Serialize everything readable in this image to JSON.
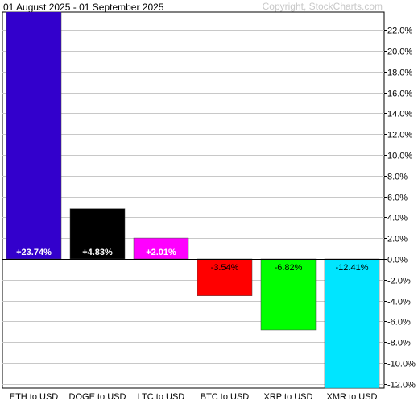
{
  "header": {
    "title": "01 August 2025 - 01 September 2025",
    "copyright": "Copyright, StockCharts.com"
  },
  "chart_data": {
    "type": "bar",
    "title": "01 August 2025 - 01 September 2025",
    "xlabel": "",
    "ylabel": "",
    "categories": [
      "ETH to USD",
      "DOGE to USD",
      "LTC to USD",
      "BTC to USD",
      "XRP to USD",
      "XMR to USD"
    ],
    "values": [
      23.74,
      4.83,
      2.01,
      -3.54,
      -6.82,
      -12.41
    ],
    "value_labels": [
      "+23.74%",
      "+4.83%",
      "+2.01%",
      "-3.54%",
      "-6.82%",
      "-12.41%"
    ],
    "bar_colors": [
      "#3300cc",
      "#000000",
      "#ff00ff",
      "#ff0000",
      "#00ff00",
      "#00e5ff"
    ],
    "label_colors": [
      "#ffffff",
      "#ffffff",
      "#ffffff",
      "#000000",
      "#000000",
      "#000000"
    ],
    "yticks": [
      22,
      20,
      18,
      16,
      14,
      12,
      10,
      8,
      6,
      4,
      2,
      0,
      -2,
      -4,
      -6,
      -8,
      -10,
      -12
    ],
    "ytick_labels": [
      "22.0%",
      "20.0%",
      "18.0%",
      "16.0%",
      "14.0%",
      "12.0%",
      "10.0%",
      "8.0%",
      "6.0%",
      "4.0%",
      "2.0%",
      "0.0%",
      "-2.0%",
      "-4.0%",
      "-6.0%",
      "-8.0%",
      "-10.0%",
      "-12.0%"
    ],
    "ylim": [
      -12.6,
      23.74
    ],
    "grid": true,
    "yaxis_position": "right"
  }
}
